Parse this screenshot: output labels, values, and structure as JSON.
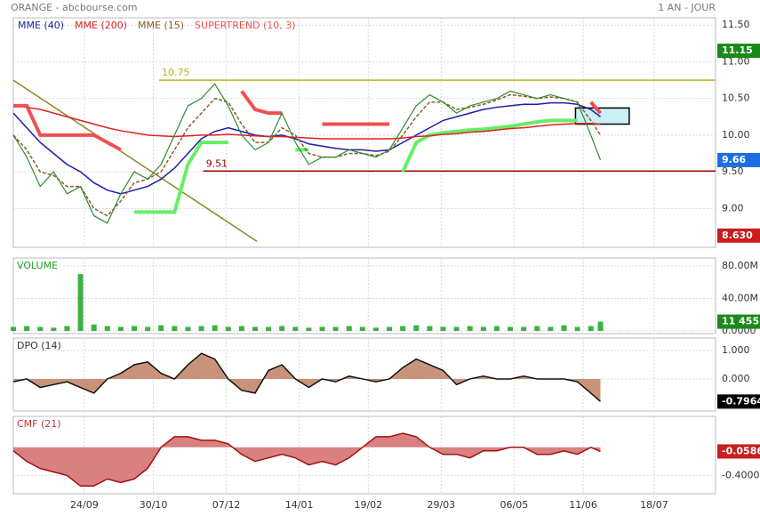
{
  "header": {
    "title": "ORANGE - abcbourse.com",
    "period": "1 AN - JOUR"
  },
  "chart_data": [
    {
      "type": "line",
      "x": [
        -37,
        -30,
        -23,
        -16,
        -9,
        -2,
        5,
        12,
        19,
        26,
        33,
        40,
        47,
        54,
        61,
        68,
        75,
        82,
        89,
        96,
        103,
        110,
        117,
        124,
        131,
        138,
        145,
        152,
        159,
        166,
        173,
        180,
        187,
        194,
        201,
        208,
        215,
        222,
        229,
        236,
        243,
        250,
        257,
        264,
        269
      ],
      "price": {
        "color": "#2e8b2e",
        "values": [
          10.0,
          9.7,
          9.3,
          9.5,
          9.2,
          9.3,
          8.9,
          8.8,
          9.2,
          9.5,
          9.4,
          9.6,
          10.0,
          10.4,
          10.5,
          10.7,
          10.4,
          10.0,
          9.8,
          9.9,
          10.3,
          9.9,
          9.6,
          9.7,
          9.7,
          9.8,
          9.75,
          9.7,
          9.8,
          10.1,
          10.4,
          10.55,
          10.45,
          10.3,
          10.4,
          10.45,
          10.5,
          10.6,
          10.55,
          10.5,
          10.55,
          10.5,
          10.45,
          10.0,
          9.66
        ]
      },
      "series": [
        {
          "name": "MME (40)",
          "color": "#1c1ca8",
          "values": [
            10.3,
            10.1,
            9.9,
            9.75,
            9.6,
            9.5,
            9.35,
            9.25,
            9.2,
            9.25,
            9.3,
            9.4,
            9.55,
            9.75,
            9.95,
            10.05,
            10.1,
            10.05,
            10.0,
            9.98,
            10.0,
            9.95,
            9.88,
            9.85,
            9.82,
            9.8,
            9.8,
            9.78,
            9.8,
            9.9,
            10.0,
            10.1,
            10.2,
            10.25,
            10.3,
            10.35,
            10.38,
            10.4,
            10.42,
            10.42,
            10.44,
            10.44,
            10.42,
            10.35,
            10.25
          ]
        },
        {
          "name": "MME (200)",
          "color": "#e02020",
          "values": [
            10.4,
            10.38,
            10.35,
            10.3,
            10.25,
            10.2,
            10.15,
            10.1,
            10.06,
            10.03,
            10.0,
            9.99,
            9.98,
            9.99,
            10.0,
            10.0,
            10.01,
            10.0,
            9.99,
            9.98,
            9.98,
            9.97,
            9.96,
            9.95,
            9.95,
            9.95,
            9.95,
            9.95,
            9.95,
            9.96,
            9.98,
            9.99,
            10.01,
            10.02,
            10.04,
            10.05,
            10.07,
            10.09,
            10.1,
            10.12,
            10.14,
            10.15,
            10.16,
            10.16,
            10.15
          ]
        },
        {
          "name": "MME (15)",
          "color": "#8b5a2b",
          "dashed": true,
          "values": [
            10.0,
            9.8,
            9.5,
            9.45,
            9.3,
            9.3,
            9.0,
            8.9,
            9.1,
            9.35,
            9.4,
            9.5,
            9.8,
            10.1,
            10.3,
            10.5,
            10.45,
            10.15,
            9.9,
            9.9,
            10.1,
            10.0,
            9.75,
            9.7,
            9.7,
            9.75,
            9.75,
            9.72,
            9.78,
            10.0,
            10.25,
            10.45,
            10.45,
            10.35,
            10.38,
            10.42,
            10.48,
            10.55,
            10.53,
            10.5,
            10.52,
            10.5,
            10.45,
            10.2,
            10.0
          ]
        },
        {
          "name": "SUPERTREND (10, 3)",
          "color": "#f05050",
          "thick": true,
          "values": [
            10.4,
            10.4,
            10.0,
            10.0,
            10.0,
            10.0,
            10.0,
            9.9,
            9.8,
            null,
            null,
            null,
            null,
            null,
            null,
            null,
            null,
            10.6,
            10.35,
            10.3,
            10.3,
            null,
            null,
            10.15,
            10.15,
            10.15,
            10.15,
            10.15,
            10.15,
            null,
            null,
            null,
            null,
            null,
            null,
            null,
            null,
            null,
            null,
            null,
            null,
            null,
            null,
            10.45,
            10.3
          ]
        }
      ],
      "supertrend_up": {
        "color": "#66ee66",
        "values": [
          null,
          null,
          null,
          null,
          null,
          null,
          null,
          null,
          null,
          8.95,
          8.95,
          8.95,
          8.95,
          9.6,
          9.9,
          9.9,
          9.9,
          null,
          null,
          null,
          null,
          9.8,
          9.8,
          null,
          null,
          null,
          null,
          null,
          null,
          9.5,
          9.9,
          10.0,
          10.03,
          10.05,
          10.07,
          10.08,
          10.1,
          10.12,
          10.15,
          10.18,
          10.2,
          10.2,
          10.2,
          null,
          null
        ]
      },
      "levels": [
        {
          "value": 10.75,
          "from": 39,
          "color": "#b5b520"
        },
        {
          "value": 9.51,
          "from": 62,
          "color": "#a00000"
        }
      ],
      "trendline": {
        "x": [
          -37,
          90
        ],
        "y": [
          10.75,
          8.55
        ],
        "color": "#8a8a20"
      },
      "zone": {
        "x": [
          256,
          284
        ],
        "y": [
          10.15,
          10.37
        ],
        "color": "#c8f0f5"
      },
      "tags": [
        {
          "value": 11.15,
          "color": "#1a8a1a"
        },
        {
          "value": 9.66,
          "color": "#1a6ee0"
        },
        {
          "value": 8.63,
          "label": "8.630",
          "color": "#c81e1e"
        }
      ],
      "ylim": [
        8.47,
        11.6
      ],
      "yticks": [
        {
          "value": 9.0,
          "label": "9.00"
        },
        {
          "value": 9.5,
          "label": "9.50"
        },
        {
          "value": 10.0,
          "label": "10.00"
        },
        {
          "value": 10.5,
          "label": "10.50"
        },
        {
          "value": 11.0,
          "label": "11.00"
        },
        {
          "value": 11.5,
          "label": "11.50"
        }
      ],
      "grid": true
    },
    {
      "type": "bar",
      "title": "VOLUME",
      "title_color": "#2a9d2a",
      "color": "#3cb043",
      "x": [
        -37,
        -30,
        -23,
        -16,
        -9,
        -2,
        5,
        12,
        19,
        26,
        33,
        40,
        47,
        54,
        61,
        68,
        75,
        82,
        89,
        96,
        103,
        110,
        117,
        124,
        131,
        138,
        145,
        152,
        159,
        166,
        173,
        180,
        187,
        194,
        201,
        208,
        215,
        222,
        229,
        236,
        243,
        250,
        257,
        264,
        269
      ],
      "values": [
        5000000,
        6000000,
        5000000,
        4000000,
        6000000,
        70000000,
        8000000,
        6000000,
        5000000,
        6000000,
        5000000,
        7000000,
        6000000,
        5000000,
        6000000,
        7000000,
        5000000,
        6000000,
        5000000,
        5000000,
        6000000,
        5000000,
        4000000,
        5000000,
        5000000,
        6000000,
        5000000,
        4000000,
        5000000,
        6000000,
        7000000,
        6000000,
        5000000,
        5000000,
        6000000,
        5000000,
        6000000,
        5000000,
        5000000,
        6000000,
        5000000,
        7000000,
        5000000,
        6000000,
        11455000
      ],
      "tags": [
        {
          "value": 11455000,
          "label": "11 455K",
          "color": "#1a8a1a"
        }
      ],
      "ylim": [
        -3300000,
        89900000
      ],
      "yticks": [
        {
          "value": 0,
          "label": "0.0000"
        },
        {
          "value": 40000000,
          "label": "40.00M"
        },
        {
          "value": 80000000,
          "label": "80.00M"
        }
      ],
      "grid": true
    },
    {
      "type": "area",
      "title": "DPO (14)",
      "title_color": "#333333",
      "color": "#c8937a",
      "line_color": "#111111",
      "x": [
        -37,
        -30,
        -23,
        -16,
        -9,
        -2,
        5,
        12,
        19,
        26,
        33,
        40,
        47,
        54,
        61,
        68,
        75,
        82,
        89,
        96,
        103,
        110,
        117,
        124,
        131,
        138,
        145,
        152,
        159,
        166,
        173,
        180,
        187,
        194,
        201,
        208,
        215,
        222,
        229,
        236,
        243,
        250,
        257,
        264,
        269
      ],
      "values": [
        -0.1,
        0.0,
        -0.3,
        -0.2,
        -0.1,
        -0.3,
        -0.5,
        0.0,
        0.2,
        0.5,
        0.6,
        0.2,
        0.0,
        0.5,
        0.9,
        0.7,
        0.0,
        -0.4,
        -0.5,
        0.3,
        0.5,
        0.0,
        -0.3,
        0.0,
        -0.1,
        0.1,
        0.0,
        -0.1,
        0.0,
        0.4,
        0.7,
        0.5,
        0.3,
        -0.2,
        0.0,
        0.1,
        0.0,
        0.0,
        0.1,
        0.0,
        0.0,
        0.0,
        -0.1,
        -0.5,
        -0.7964
      ],
      "tags": [
        {
          "value": -0.7964,
          "color": "#000000"
        }
      ],
      "ylim": [
        -1.13,
        1.44
      ],
      "yticks": [
        {
          "value": 1,
          "label": "1.000"
        },
        {
          "value": 0,
          "label": "0.000"
        }
      ],
      "grid": true
    },
    {
      "type": "area",
      "title": "CMF (21)",
      "title_color": "#d03030",
      "color": "#d98080",
      "line_color": "#a01010",
      "x": [
        -37,
        -30,
        -23,
        -16,
        -9,
        -2,
        5,
        12,
        19,
        26,
        33,
        40,
        47,
        54,
        61,
        68,
        75,
        82,
        89,
        96,
        103,
        110,
        117,
        124,
        131,
        138,
        145,
        152,
        159,
        166,
        173,
        180,
        187,
        194,
        201,
        208,
        215,
        222,
        229,
        236,
        243,
        250,
        257,
        264,
        269
      ],
      "values": [
        -0.05,
        -0.2,
        -0.3,
        -0.35,
        -0.4,
        -0.55,
        -0.55,
        -0.45,
        -0.5,
        -0.45,
        -0.3,
        0.0,
        0.15,
        0.15,
        0.1,
        0.1,
        0.05,
        -0.1,
        -0.2,
        -0.15,
        -0.1,
        -0.15,
        -0.25,
        -0.2,
        -0.25,
        -0.15,
        0.0,
        0.15,
        0.15,
        0.2,
        0.15,
        0.0,
        -0.1,
        -0.1,
        -0.15,
        -0.05,
        -0.05,
        0.0,
        0.0,
        -0.1,
        -0.1,
        -0.05,
        -0.1,
        0.0,
        -0.0586
      ],
      "tags": [
        {
          "value": -0.0586,
          "color": "#c81e1e"
        }
      ],
      "ylim": [
        -0.66,
        0.44
      ],
      "yticks": [
        {
          "value": -0.4,
          "label": "-0.4000"
        }
      ],
      "xlim": [
        -37,
        329
      ],
      "xticks": [
        {
          "value": 0,
          "label": "24/09"
        },
        {
          "value": 36,
          "label": "30/10"
        },
        {
          "value": 74,
          "label": "07/12"
        },
        {
          "value": 112,
          "label": "14/01"
        },
        {
          "value": 148,
          "label": "19/02"
        },
        {
          "value": 186,
          "label": "29/03"
        },
        {
          "value": 224,
          "label": "06/05"
        },
        {
          "value": 260,
          "label": "11/06"
        },
        {
          "value": 297,
          "label": "18/07"
        }
      ],
      "grid": true
    }
  ]
}
